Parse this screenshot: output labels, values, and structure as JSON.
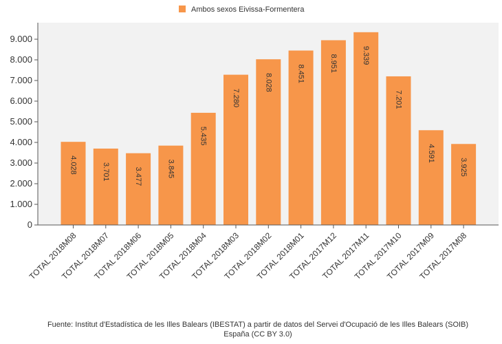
{
  "chart_data": {
    "type": "bar",
    "categories": [
      "TOTAL 2018M08",
      "TOTAL 2018M07",
      "TOTAL 2018M06",
      "TOTAL 2018M05",
      "TOTAL 2018M04",
      "TOTAL 2018M03",
      "TOTAL 2018M02",
      "TOTAL 2018M01",
      "TOTAL 2017M12",
      "TOTAL 2017M11",
      "TOTAL 2017M10",
      "TOTAL 2017M09",
      "TOTAL 2017M08"
    ],
    "series": [
      {
        "name": "Ambos sexos Eivissa-Formentera",
        "values": [
          4028,
          3701,
          3477,
          3845,
          5435,
          7280,
          8028,
          8451,
          8951,
          9339,
          7201,
          4591,
          3925
        ],
        "value_labels": [
          "4.028",
          "3.701",
          "3.477",
          "3.845",
          "5.435",
          "7.280",
          "8.028",
          "8.451",
          "8.951",
          "9.339",
          "7.201",
          "4.591",
          "3.925"
        ],
        "color": "#f7964a"
      }
    ],
    "yticks": [
      0,
      1000,
      2000,
      3000,
      4000,
      5000,
      6000,
      7000,
      8000,
      9000
    ],
    "ytick_labels": [
      "0",
      "1.000",
      "2.000",
      "3.000",
      "4.000",
      "5.000",
      "6.000",
      "7.000",
      "8.000",
      "9.000"
    ],
    "ylim": [
      0,
      9800
    ],
    "legend_position": "top-center",
    "grid": false
  },
  "source": {
    "line1": "Fuente: Institut d'Estadística de les Illes Balears (IBESTAT) a partir de datos del Servei d'Ocupació de les Illes Balears (SOIB)",
    "line2": "España (CC BY 3.0)"
  }
}
